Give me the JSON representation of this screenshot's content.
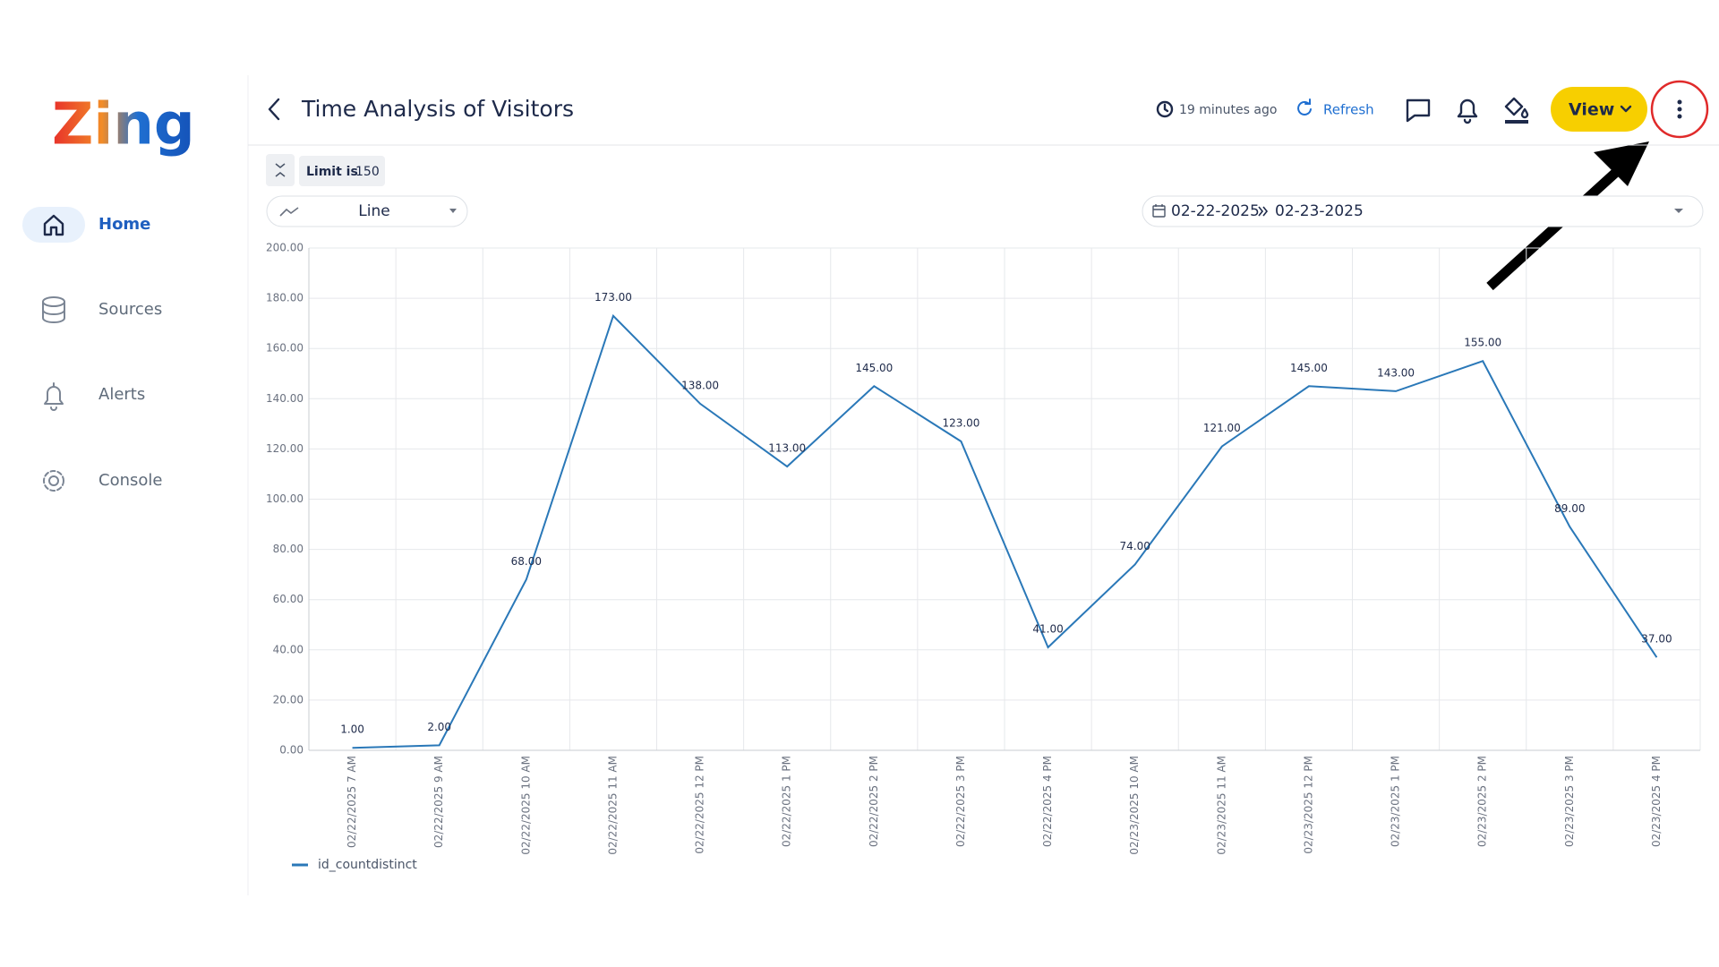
{
  "sidebar": {
    "logo": "Zing",
    "nav": [
      "Home",
      "Sources",
      "Alerts",
      "Console"
    ]
  },
  "header": {
    "title": "Time Analysis of Visitors",
    "updated": "19 minutes ago",
    "refresh": "Refresh",
    "view_button": "View"
  },
  "controls": {
    "limit_label": "Limit is",
    "limit_value": "150",
    "chart_type": "Line",
    "date_from": "02-22-2025",
    "date_to": "02-23-2025"
  },
  "chart_data": {
    "type": "line",
    "categories": [
      "02/22/2025 7 AM",
      "02/22/2025 9 AM",
      "02/22/2025 10 AM",
      "02/22/2025 11 AM",
      "02/22/2025 12 PM",
      "02/22/2025 1 PM",
      "02/22/2025 2 PM",
      "02/22/2025 3 PM",
      "02/22/2025 4 PM",
      "02/23/2025 10 AM",
      "02/23/2025 11 AM",
      "02/23/2025 12 PM",
      "02/23/2025 1 PM",
      "02/23/2025 2 PM",
      "02/23/2025 3 PM",
      "02/23/2025 4 PM"
    ],
    "series": [
      {
        "name": "id_countdistinct",
        "color": "#2a78b8",
        "values": [
          1,
          2,
          68,
          173,
          138,
          113,
          145,
          123,
          41,
          74,
          121,
          145,
          143,
          155,
          89,
          37
        ],
        "value_labels": [
          "1.00",
          "2.00",
          "68.00",
          "173.00",
          "138.00",
          "113.00",
          "145.00",
          "123.00",
          "41.00",
          "74.00",
          "121.00",
          "145.00",
          "143.00",
          "155.00",
          "89.00",
          "37.00"
        ]
      }
    ],
    "ylim": [
      0,
      200
    ],
    "yticks": [
      {
        "value": 0,
        "label": "0.00"
      },
      {
        "value": 20,
        "label": "20.00"
      },
      {
        "value": 40,
        "label": "40.00"
      },
      {
        "value": 60,
        "label": "60.00"
      },
      {
        "value": 80,
        "label": "80.00"
      },
      {
        "value": 100,
        "label": "100.00"
      },
      {
        "value": 120,
        "label": "120.00"
      },
      {
        "value": 140,
        "label": "140.00"
      },
      {
        "value": 160,
        "label": "160.00"
      },
      {
        "value": 180,
        "label": "180.00"
      },
      {
        "value": 200,
        "label": "200.00"
      }
    ],
    "grid": true,
    "legend": "bottom-left"
  }
}
